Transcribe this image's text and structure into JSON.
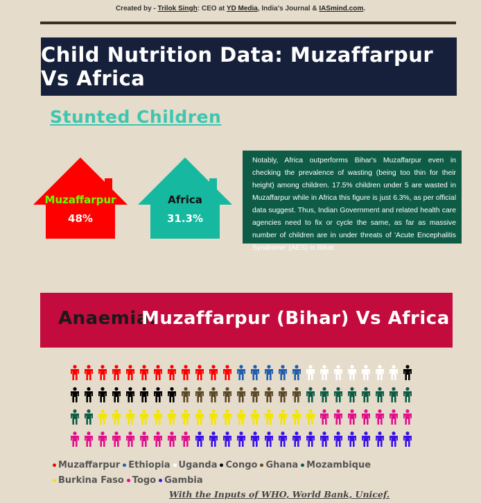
{
  "credit": {
    "prefix": "Created by - ",
    "author": "Trilok Singh",
    "mid": ": CEO at ",
    "company": "YD Media",
    "mid2": ", India's Journal & ",
    "site": "IASmind.com",
    "suffix": "."
  },
  "banner_title": "Child Nutrition Data: Muzaffarpur Vs Africa",
  "stunted": {
    "heading": "Stunted Children",
    "houses": [
      {
        "label": "Muzaffarpur",
        "value": "48%",
        "value_num": 48,
        "color": "#ff0000",
        "label_color": "#66ff00"
      },
      {
        "label": "Africa",
        "value": "31.3%",
        "value_num": 31.3,
        "color": "#16b89f",
        "label_color": "#111111"
      }
    ]
  },
  "note": "Notably, Africa outperforms Bihar's Muzaffarpur even in checking the prevalence of wasting (being too thin for their height) among children. 17.5% children under 5 are wasted in Muzaffarpur while in Africa this figure is just 6.3%, as per official data suggest. Thus, Indian Government and related health care agencies need to fix or cycle the same, as far as massive number of children are in under threats of 'Acute Encephalitis Syndrome' (AES) in Bihar.",
  "anaemia": {
    "title_dark": "Anaemia:",
    "title_light": "Muzaffarpur (Bihar) Vs Africa"
  },
  "chart_data": {
    "type": "pictogram",
    "units_per_row": 25,
    "series": [
      {
        "name": "Muzaffarpur",
        "count": 12,
        "color": "#ff0000"
      },
      {
        "name": "Ethiopia",
        "count": 5,
        "color": "#1f5fae"
      },
      {
        "name": "Uganda",
        "count": 7,
        "color": "#ffffff"
      },
      {
        "name": "Congo",
        "count": 9,
        "color": "#000000"
      },
      {
        "name": "Ghana",
        "count": 9,
        "color": "#5c4a2a"
      },
      {
        "name": "Mozambique",
        "count": 10,
        "color": "#0f5c46"
      },
      {
        "name": "Burkina Faso",
        "count": 16,
        "color": "#f2e600"
      },
      {
        "name": "Togo",
        "count": 16,
        "color": "#e0108a"
      },
      {
        "name": "Gambia",
        "count": 16,
        "color": "#3a12e8"
      }
    ]
  },
  "legend": [
    {
      "name": "Muzaffarpur",
      "color": "#ff0000"
    },
    {
      "name": "Ethiopia",
      "color": "#1f5fae"
    },
    {
      "name": "Uganda",
      "color": "#ffffff"
    },
    {
      "name": "Congo",
      "color": "#000000"
    },
    {
      "name": "Ghana",
      "color": "#5c4a2a"
    },
    {
      "name": "Mozambique",
      "color": "#0f5c46"
    },
    {
      "name": "Burkina Faso",
      "color": "#f2e600"
    },
    {
      "name": "Togo",
      "color": "#e0108a"
    },
    {
      "name": "Gambia",
      "color": "#3a12e8"
    }
  ],
  "source": "With the Inputs of WHO, World Bank, Unicef."
}
